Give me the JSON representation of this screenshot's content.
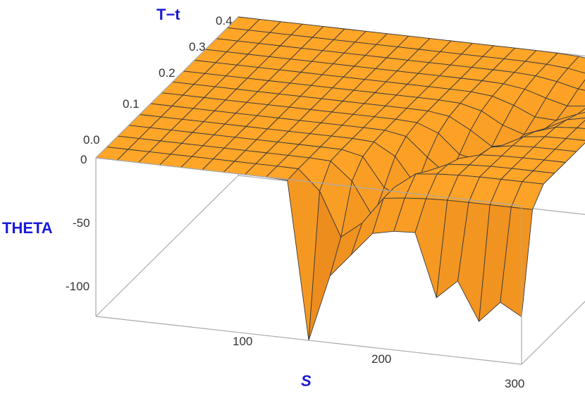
{
  "chart_data": {
    "type": "surface3d",
    "title": "",
    "xlabel": "S",
    "ylabel": "T−t",
    "zlabel": "THETA",
    "x_ticks": [
      "100",
      "200",
      "300"
    ],
    "y_ticks": [
      "0.0",
      "0.1",
      "0.2",
      "0.3",
      "0.4"
    ],
    "z_ticks": [
      "0",
      "-50",
      "-100"
    ],
    "xlim": [
      0,
      300
    ],
    "ylim": [
      0,
      0.4
    ],
    "zlim": [
      -125,
      0
    ],
    "surface_color": "#f7941d",
    "mesh_color": "#3a3a3a",
    "box_color": "#aaaaaa",
    "grid": false,
    "dips": [
      {
        "S": 150,
        "theta": -130
      },
      {
        "S": 160,
        "theta": -60
      },
      {
        "S": 180,
        "theta": -58
      },
      {
        "S": 200,
        "theta": -62
      },
      {
        "S": 218,
        "theta": -60
      },
      {
        "S": 240,
        "theta": -90
      },
      {
        "S": 255,
        "theta": -75
      },
      {
        "S": 270,
        "theta": -105
      },
      {
        "S": 285,
        "theta": -88
      },
      {
        "S": 298,
        "theta": -125
      }
    ]
  }
}
